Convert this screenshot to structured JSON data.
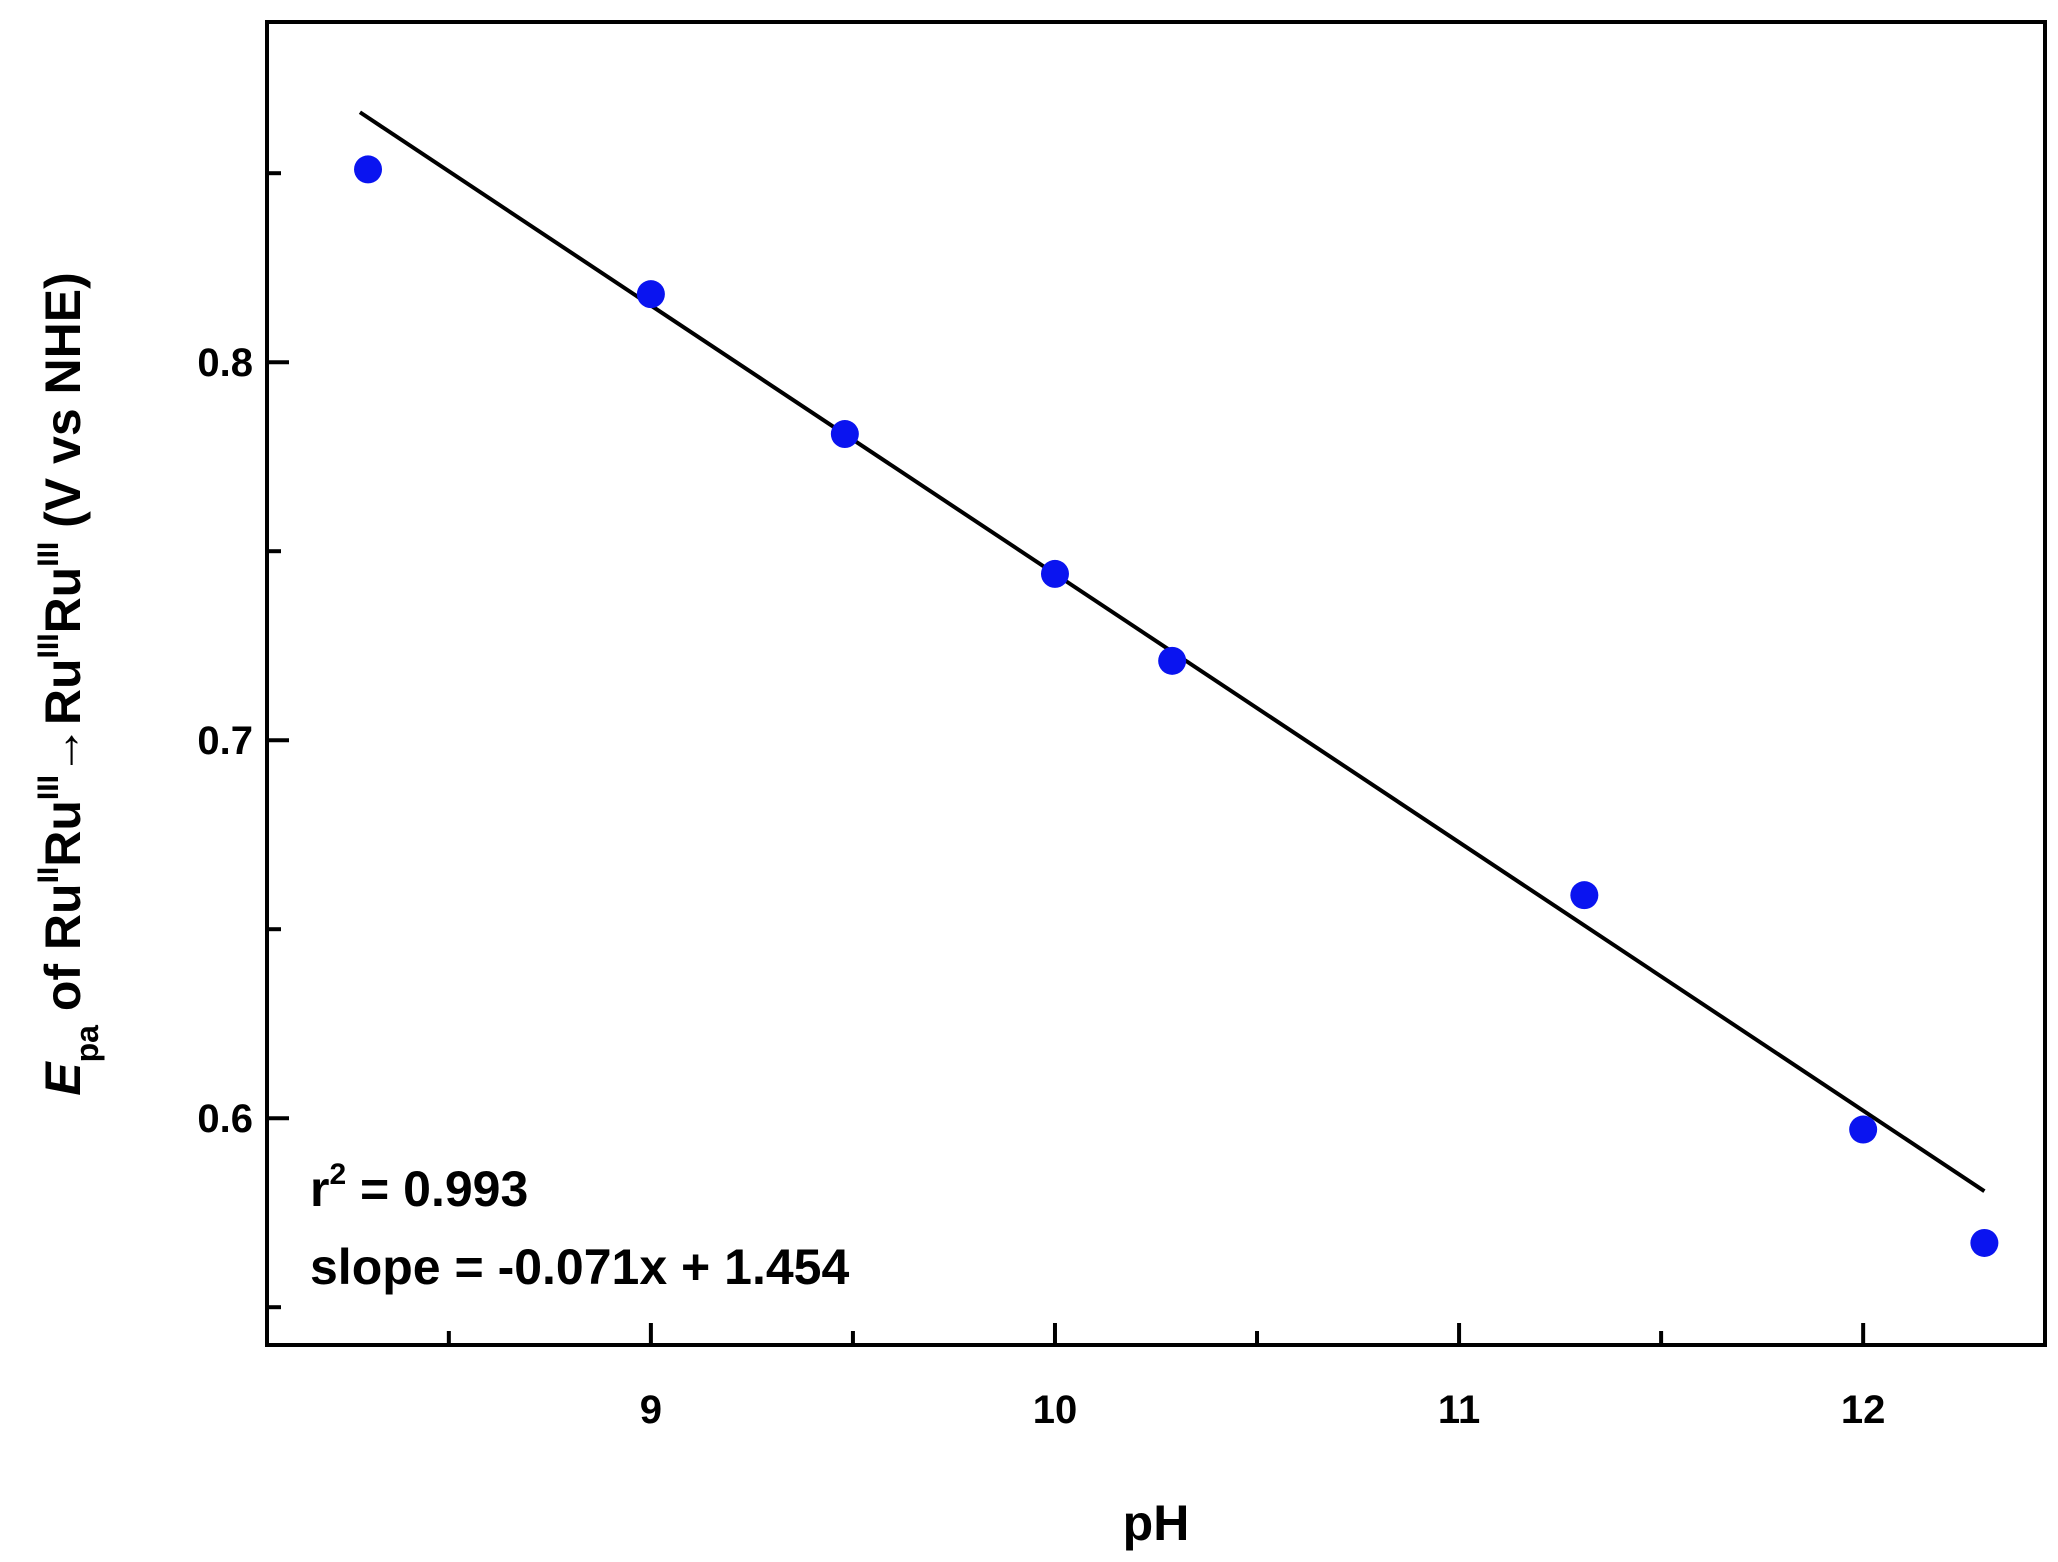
{
  "chart_data": {
    "type": "scatter",
    "xlabel": "pH",
    "ylabel": {
      "E": "E",
      "pa": "pa",
      "of": " of Ru",
      "II": "II",
      "ru1": "Ru",
      "III": "III",
      "arrow": "→",
      "ru2": "Ru",
      "III2": "III",
      "ru3": "Ru",
      "III3": "III",
      "unit": " (V vs NHE)"
    },
    "xlim": [
      8.05,
      12.45
    ],
    "ylim": [
      0.54,
      0.89
    ],
    "x_ticks": [
      "9",
      "10",
      "11",
      "12"
    ],
    "y_ticks": [
      "0.6",
      "0.7",
      "0.8"
    ],
    "points": [
      {
        "x": 8.3,
        "y": 0.851
      },
      {
        "x": 9.0,
        "y": 0.818
      },
      {
        "x": 9.48,
        "y": 0.781
      },
      {
        "x": 10.0,
        "y": 0.744
      },
      {
        "x": 10.29,
        "y": 0.721
      },
      {
        "x": 11.31,
        "y": 0.659
      },
      {
        "x": 12.0,
        "y": 0.597
      },
      {
        "x": 12.3,
        "y": 0.567
      }
    ],
    "fit_line": {
      "slope": -0.071,
      "intercept": 1.454,
      "x_range": [
        8.28,
        12.3
      ]
    },
    "annotations": {
      "r2_prefix": "r",
      "r2_sup": "2",
      "r2_value": " = 0.993",
      "slope_text": "slope = -0.071x + 1.454"
    },
    "colors": {
      "points": "#0a14f0",
      "line": "#000000"
    }
  }
}
